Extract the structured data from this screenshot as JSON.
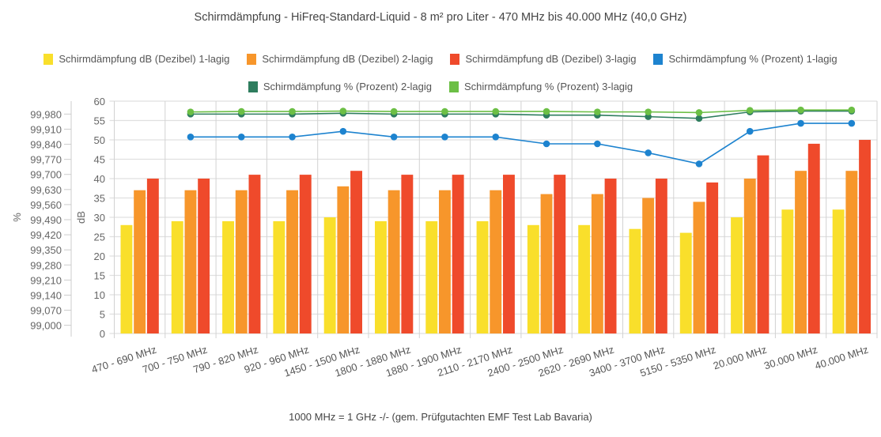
{
  "chart_data": {
    "type": "bar",
    "title": "Schirmdämpfung - HiFreq-Standard-Liquid - 8 m² pro Liter - 470 MHz bis 40.000 MHz (40,0 GHz)",
    "footer": "1000 MHz = 1 GHz -/- (gem. Prüfgutachten EMF Test Lab Bavaria)",
    "xlabel": "",
    "ylabel_left": "%",
    "ylabel_right": "dB",
    "categories": [
      "470 - 690 MHz",
      "700 - 750 MHz",
      "790 - 820 MHz",
      "920 - 960 MHz",
      "1450 - 1500 MHz",
      "1800 - 1880 MHz",
      "1880 - 1900 MHz",
      "2110 - 2170 MHz",
      "2400 - 2500 MHz",
      "2620 - 2690 MHz",
      "3400 - 3700 MHz",
      "5150 - 5350 MHz",
      "20.000 MHz",
      "30.000 MHz",
      "40.000 MHz"
    ],
    "db_axis": {
      "ylim": [
        0,
        60
      ],
      "ticks": [
        "0",
        "5",
        "10",
        "15",
        "20",
        "25",
        "30",
        "35",
        "40",
        "45",
        "50",
        "55",
        "60"
      ]
    },
    "percent_axis": {
      "ylim": [
        98.962,
        100.04
      ],
      "ticks": [
        "99,000",
        "99,070",
        "99,140",
        "99,210",
        "99,280",
        "99,350",
        "99,420",
        "99,490",
        "99,560",
        "99,630",
        "99,700",
        "99,770",
        "99,840",
        "99,910",
        "99,980"
      ],
      "tick_values": [
        99.0,
        99.07,
        99.14,
        99.21,
        99.28,
        99.35,
        99.42,
        99.49,
        99.56,
        99.63,
        99.7,
        99.77,
        99.84,
        99.91,
        99.98
      ]
    },
    "grid": true,
    "legend_position": "top",
    "series": [
      {
        "name": "Schirmdämpfung dB (Dezibel) 1-lagig",
        "kind": "bar",
        "axis": "dB",
        "color": "#F9DF2B",
        "values": [
          28,
          29,
          29,
          29,
          30,
          29,
          29,
          29,
          28,
          28,
          27,
          26,
          30,
          32,
          32
        ]
      },
      {
        "name": "Schirmdämpfung dB (Dezibel) 2-lagig",
        "kind": "bar",
        "axis": "dB",
        "color": "#F7962B",
        "values": [
          37,
          37,
          37,
          37,
          38,
          37,
          37,
          37,
          36,
          36,
          35,
          34,
          40,
          42,
          42
        ]
      },
      {
        "name": "Schirmdämpfung dB (Dezibel) 3-lagig",
        "kind": "bar",
        "axis": "dB",
        "color": "#EF4A2B",
        "values": [
          40,
          40,
          41,
          41,
          42,
          41,
          41,
          41,
          41,
          40,
          40,
          39,
          46,
          49,
          50
        ]
      },
      {
        "name": "Schirmdämpfung % (Prozent) 1-lagig",
        "kind": "line",
        "axis": "%",
        "color": "#1D83CF",
        "values": [
          null,
          99.874,
          99.874,
          99.874,
          99.9,
          99.874,
          99.874,
          99.874,
          99.842,
          99.842,
          99.8,
          99.749,
          99.9,
          99.937,
          99.937
        ]
      },
      {
        "name": "Schirmdämpfung % (Prozent) 2-lagig",
        "kind": "line",
        "axis": "%",
        "color": "#2E7D5E",
        "values": [
          null,
          99.98,
          99.98,
          99.98,
          99.984,
          99.98,
          99.98,
          99.98,
          99.975,
          99.975,
          99.968,
          99.96,
          99.99,
          99.994,
          99.994
        ]
      },
      {
        "name": "Schirmdämpfung % (Prozent) 3-lagig",
        "kind": "line",
        "axis": "%",
        "color": "#6CBF45",
        "values": [
          null,
          99.99,
          99.992,
          99.992,
          99.994,
          99.992,
          99.992,
          99.992,
          99.992,
          99.99,
          99.99,
          99.987,
          99.997,
          99.999,
          99.999
        ]
      }
    ]
  }
}
